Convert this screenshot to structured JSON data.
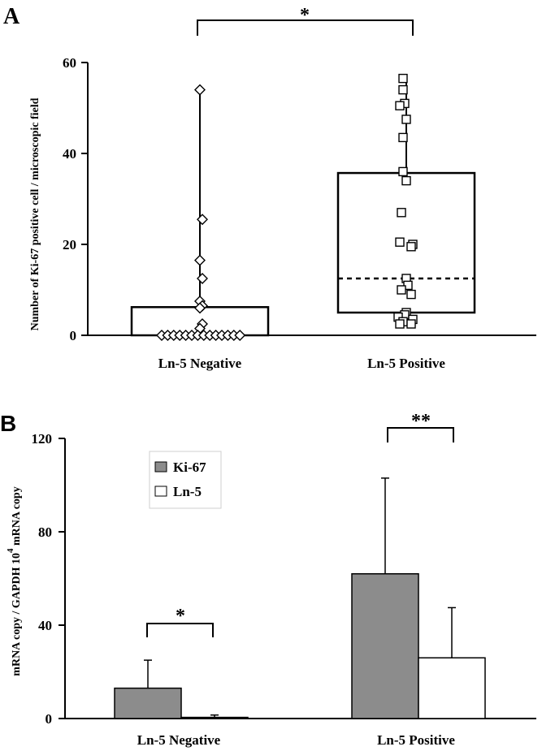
{
  "figure": {
    "panel_a_letter": "A",
    "panel_b_letter": "B"
  },
  "colors": {
    "ki67_bar": "#8c8c8c",
    "ln5_bar": "#ffffff",
    "axis": "#000000"
  },
  "chart_data": [
    {
      "type": "scatter",
      "title": "",
      "xlabel": "",
      "ylabel": "Number of Ki-67 positive cell / microscopic field",
      "ylim": [
        0,
        60
      ],
      "yticks": [
        0,
        20,
        40,
        60
      ],
      "categories": [
        "Ln-5 Negative",
        "Ln-5 Positive"
      ],
      "grid": false,
      "points": {
        "Ln-5 Negative": [
          54,
          25.5,
          16.5,
          12.5,
          7.5,
          6.5,
          6,
          2.5,
          1.5,
          0,
          0,
          0,
          0,
          0,
          0,
          0,
          0,
          0,
          0,
          0,
          0,
          0,
          0
        ],
        "Ln-5 Positive": [
          56.5,
          54,
          51,
          50.5,
          47.5,
          43.5,
          36,
          34,
          27,
          20.5,
          20,
          19.5,
          12.5,
          11,
          10,
          9,
          5,
          4.5,
          4,
          3.5,
          3,
          2.5,
          2.5
        ]
      },
      "box": {
        "Ln-5 Negative": {
          "low": 0,
          "high": 6.2
        },
        "Ln-5 Positive": {
          "low": 5,
          "high": 35.7,
          "median": 12.5
        }
      },
      "point_markers": {
        "Ln-5 Negative": "diamond",
        "Ln-5 Positive": "square"
      },
      "annotations": [
        {
          "text": "*",
          "between": [
            "Ln-5 Negative",
            "Ln-5 Positive"
          ]
        }
      ]
    },
    {
      "type": "bar",
      "title": "",
      "xlabel": "",
      "ylabel": "mRNA copy / GAPDH 10",
      "ylabel_sup": "4",
      "ylabel_tail": " mRNA copy",
      "ylim": [
        0,
        120
      ],
      "yticks": [
        0,
        40,
        80,
        120
      ],
      "categories": [
        "Ln-5 Negative",
        "Ln-5 Positive"
      ],
      "series": [
        {
          "name": "Ki-67",
          "values": [
            13,
            62
          ],
          "errors": [
            12,
            41
          ]
        },
        {
          "name": "Ln-5",
          "values": [
            0.5,
            26
          ],
          "errors": [
            1,
            21.5
          ]
        }
      ],
      "legend": "top-left",
      "grid": false,
      "annotations": [
        {
          "text": "*",
          "category": "Ln-5 Negative"
        },
        {
          "text": "**",
          "category": "Ln-5 Positive"
        }
      ]
    }
  ]
}
